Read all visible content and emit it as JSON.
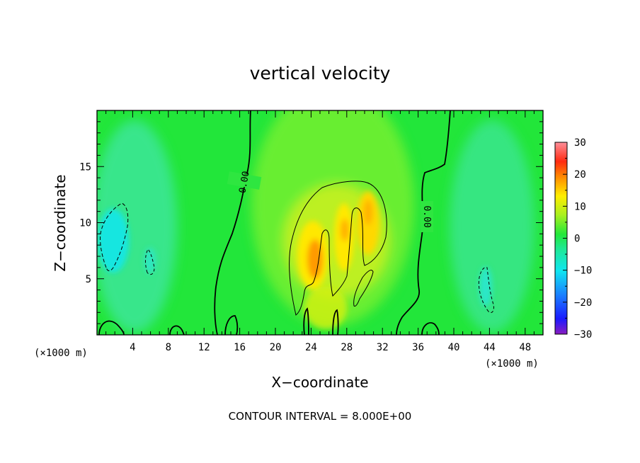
{
  "chart_data": {
    "type": "heatmap",
    "title": "vertical velocity",
    "xlabel": "X−coordinate",
    "ylabel": "Z−coordinate",
    "x_unit_left": "(×1000 m)",
    "x_unit_right": "(×1000 m)",
    "xlim": [
      0,
      50
    ],
    "ylim": [
      0,
      20
    ],
    "x_ticks": [
      4,
      8,
      12,
      16,
      20,
      24,
      28,
      32,
      36,
      40,
      44,
      48
    ],
    "y_ticks": [
      5,
      10,
      15
    ],
    "colorbar": {
      "range": [
        -30,
        30
      ],
      "ticks": [
        30,
        20,
        10,
        0,
        -10,
        -20,
        -30
      ],
      "tick_labels": [
        "30",
        "20",
        "10",
        "0",
        "−10",
        "−20",
        "−30"
      ]
    },
    "contour_labels": [
      "0.00",
      "0.00"
    ],
    "footer": "CONTOUR INTERVAL = 8.000E+00",
    "features": [
      {
        "kind": "updraft",
        "x": 24.5,
        "z": 7,
        "value": 14
      },
      {
        "kind": "updraft",
        "x": 27.5,
        "z": 9.5,
        "value": 10
      },
      {
        "kind": "updraft",
        "x": 30.5,
        "z": 10.5,
        "value": 11
      },
      {
        "kind": "downdraft",
        "x": 1.8,
        "z": 9,
        "value": -7
      },
      {
        "kind": "downdraft",
        "x": 5.8,
        "z": 6.5,
        "value": -4
      },
      {
        "kind": "downdraft",
        "x": 43.5,
        "z": 4.2,
        "value": -4
      }
    ]
  }
}
